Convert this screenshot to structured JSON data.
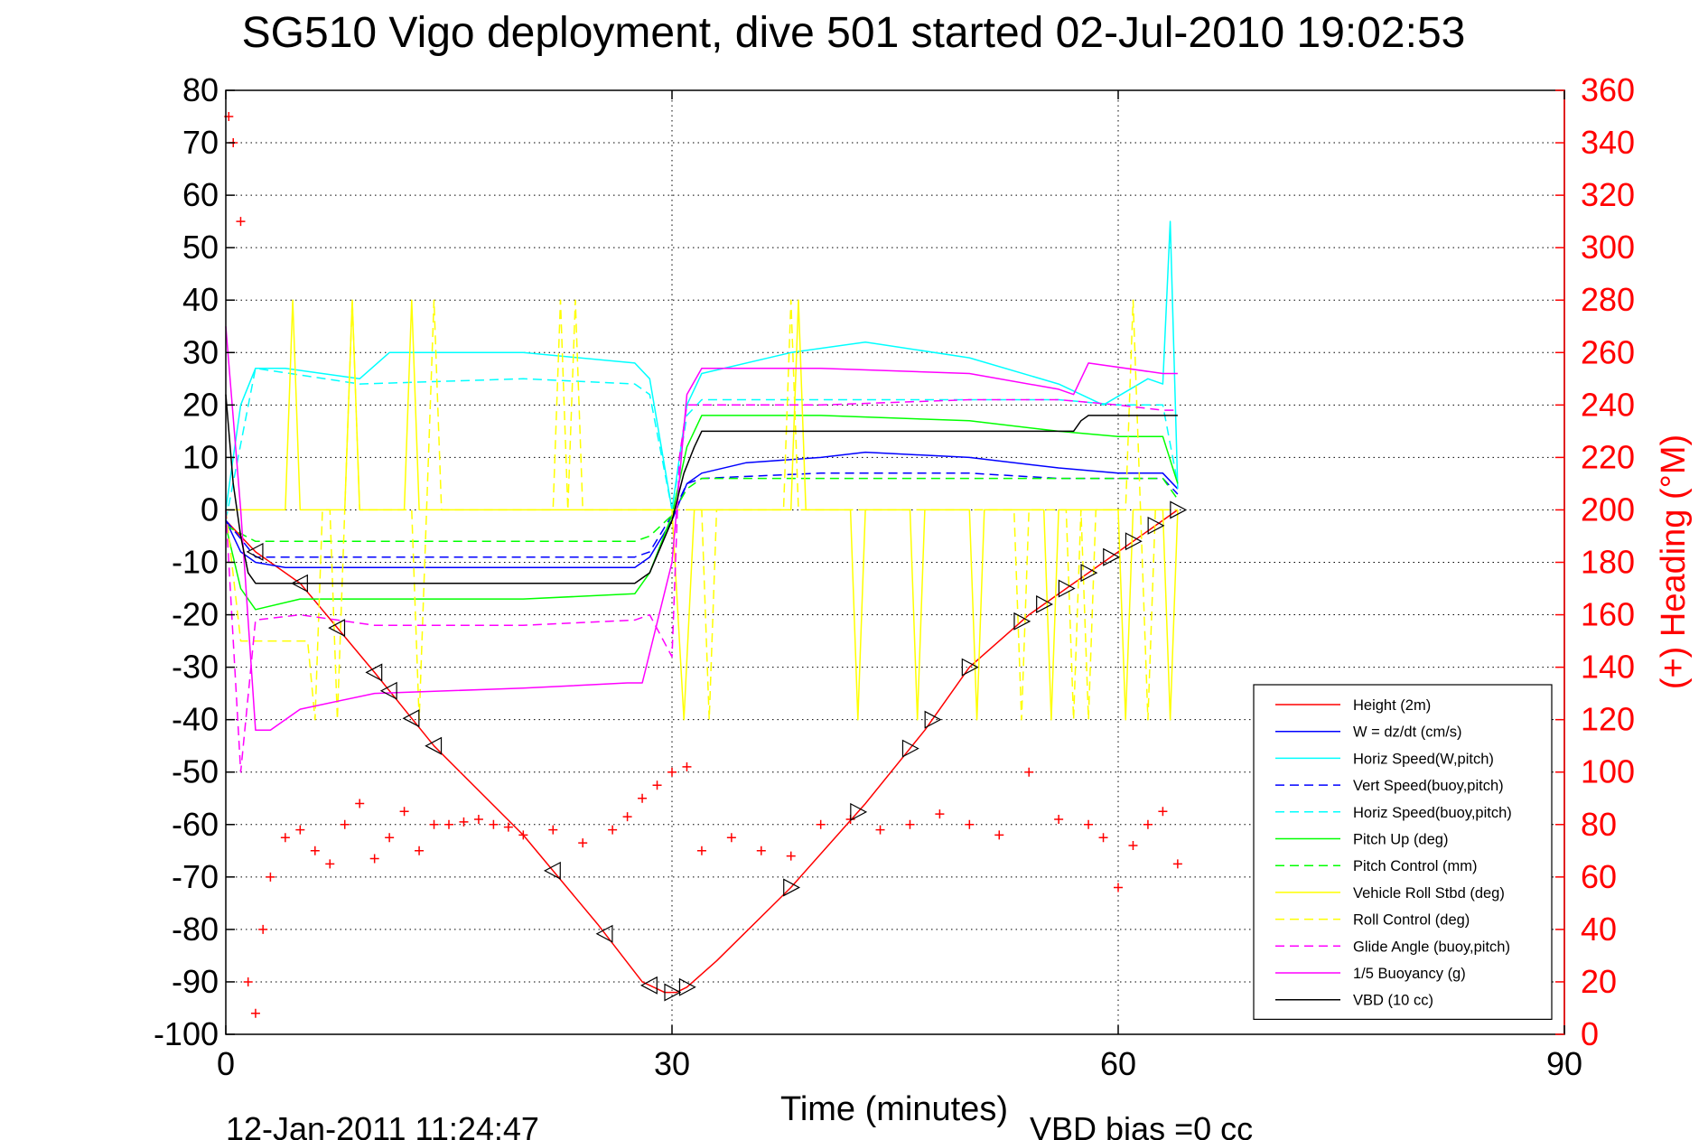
{
  "chart_data": {
    "type": "line",
    "title": "SG510 Vigo deployment, dive 501 started 02-Jul-2010 19:02:53",
    "xlabel": "Time (minutes)",
    "ylabel_right": "(+) Heading (°M)",
    "xlim": [
      0,
      90
    ],
    "ylim": [
      -100,
      80
    ],
    "ylim_right": [
      0,
      360
    ],
    "xticks": [
      "0",
      "30",
      "60",
      "90"
    ],
    "yticks": [
      "80",
      "70",
      "60",
      "50",
      "40",
      "30",
      "20",
      "10",
      "0",
      "-10",
      "-20",
      "-30",
      "-40",
      "-50",
      "-60",
      "-70",
      "-80",
      "-90",
      "-100"
    ],
    "yticks_right": [
      "360",
      "340",
      "320",
      "300",
      "280",
      "260",
      "240",
      "220",
      "200",
      "180",
      "160",
      "140",
      "120",
      "100",
      "80",
      "60",
      "40",
      "20",
      "0"
    ],
    "grid": true,
    "legend_position": "lower-right",
    "footer_left": "12-Jan-2011 11:24:47",
    "footer_right": "VBD bias =0 cc",
    "colors": {
      "red": "#ff0000",
      "blue": "#0000ff",
      "cyan": "#00ffff",
      "green": "#00ff00",
      "yellow": "#ffff00",
      "magenta": "#ff00ff",
      "black": "#000000"
    },
    "series": [
      {
        "name": "Height (2m)",
        "color": "#ff0000",
        "dash": "solid",
        "x": [
          0,
          2,
          5,
          10,
          14,
          20,
          25,
          28,
          29.5,
          30.3,
          31,
          33,
          38,
          43,
          47,
          50,
          54,
          58,
          62,
          64
        ],
        "y": [
          -2,
          -8,
          -14,
          -31,
          -45,
          -62,
          -79,
          -90,
          -92,
          -92,
          -91,
          -86,
          -72,
          -56,
          -42,
          -30,
          -20,
          -12,
          -4,
          0
        ]
      },
      {
        "name": "W = dz/dt (cm/s)",
        "color": "#0000ff",
        "dash": "solid",
        "x": [
          0,
          1,
          2,
          4,
          10,
          20,
          27.5,
          28.5,
          30,
          31,
          32,
          35,
          40,
          43,
          50,
          56,
          60,
          63,
          64
        ],
        "y": [
          -2,
          -8,
          -10,
          -11,
          -11,
          -11,
          -11,
          -9,
          -2,
          5,
          7,
          9,
          10,
          11,
          10,
          8,
          7,
          7,
          4
        ]
      },
      {
        "name": "Horiz Speed(W,pitch)",
        "color": "#00ffff",
        "dash": "solid",
        "x": [
          0,
          1,
          2,
          4,
          9,
          11,
          20,
          27.5,
          28.5,
          30,
          31,
          32,
          38,
          43,
          50,
          56,
          59,
          62,
          63,
          63.5,
          64
        ],
        "y": [
          0,
          20,
          27,
          27,
          25,
          30,
          30,
          28,
          25,
          0,
          20,
          26,
          30,
          32,
          29,
          24,
          20,
          25,
          24,
          55,
          4
        ]
      },
      {
        "name": "Vert Speed(buoy,pitch)",
        "color": "#0000ff",
        "dash": "dashed",
        "x": [
          0,
          2,
          10,
          27.5,
          28.5,
          30,
          31,
          32,
          40,
          50,
          56,
          60,
          63,
          64
        ],
        "y": [
          -2,
          -9,
          -9,
          -9,
          -8,
          -1,
          5,
          6,
          7,
          7,
          6,
          6,
          6,
          3
        ]
      },
      {
        "name": "Horiz Speed(buoy,pitch)",
        "color": "#00ffff",
        "dash": "dashed",
        "x": [
          0,
          2,
          9,
          20,
          27.5,
          28.5,
          30,
          31,
          32,
          40,
          50,
          56,
          60,
          63,
          64
        ],
        "y": [
          -2,
          27,
          24,
          25,
          24,
          22,
          0,
          18,
          21,
          21,
          21,
          21,
          20,
          20,
          5
        ]
      },
      {
        "name": "Pitch Up (deg)",
        "color": "#00ff00",
        "dash": "solid",
        "x": [
          0,
          1,
          2,
          5,
          20,
          27.5,
          28.5,
          30,
          31,
          32,
          40,
          50,
          56,
          60,
          63,
          64
        ],
        "y": [
          -3,
          -15,
          -19,
          -17,
          -17,
          -16,
          -12,
          -1,
          12,
          18,
          18,
          17,
          15,
          14,
          14,
          5
        ]
      },
      {
        "name": "Pitch Control (mm)",
        "color": "#00ff00",
        "dash": "dashed",
        "x": [
          0,
          2,
          20,
          27.5,
          28.5,
          30,
          31,
          32,
          40,
          50,
          56,
          60,
          63,
          64
        ],
        "y": [
          -3,
          -6,
          -6,
          -6,
          -5,
          -1,
          4,
          6,
          6,
          6,
          6,
          6,
          6,
          2
        ]
      },
      {
        "name": "Vehicle Roll Stbd (deg)",
        "color": "#ffff00",
        "dash": "solid",
        "x": [
          0,
          1,
          4,
          4.5,
          5,
          5.5,
          6,
          8,
          8.5,
          9,
          9.5,
          10,
          12,
          12.5,
          13,
          13.5,
          14,
          20,
          27,
          28.5,
          30,
          30.8,
          31.5,
          32.3,
          33,
          38,
          38.5,
          39,
          39.5,
          40,
          42,
          42.5,
          43,
          43.5,
          44,
          46,
          46.5,
          47,
          47.5,
          48,
          50,
          50.5,
          51,
          51.5,
          52,
          55,
          55.5,
          56,
          56.5,
          57,
          60,
          60.5,
          61,
          61.5,
          62,
          63,
          63.5,
          64
        ],
        "y": [
          0,
          0,
          0,
          40,
          0,
          0,
          0,
          0,
          40,
          0,
          0,
          0,
          0,
          40,
          0,
          0,
          0,
          0,
          0,
          0,
          0,
          -40,
          0,
          0,
          0,
          0,
          40,
          0,
          0,
          0,
          0,
          -40,
          0,
          0,
          0,
          0,
          -40,
          0,
          0,
          0,
          0,
          -40,
          0,
          0,
          0,
          0,
          -40,
          0,
          0,
          0,
          0,
          -40,
          0,
          0,
          0,
          0,
          -40,
          0
        ]
      },
      {
        "name": "Roll Control (deg)",
        "color": "#ffff00",
        "dash": "dashed",
        "x": [
          0,
          1,
          5.5,
          6,
          6.5,
          7,
          7.5,
          8,
          8.5,
          9,
          9.5,
          10,
          12.5,
          13,
          13.5,
          14,
          14.5,
          15,
          22,
          22.5,
          23,
          23.5,
          24,
          28.5,
          30,
          32,
          32.5,
          33,
          33.5,
          34,
          37.5,
          38,
          38.5,
          39,
          39.5,
          53,
          53.5,
          54,
          54.5,
          55,
          56.5,
          57,
          57.5,
          58,
          58.5,
          60.5,
          61,
          61.5,
          62,
          62.5,
          64
        ],
        "y": [
          0,
          -25,
          -25,
          -40,
          0,
          0,
          -40,
          0,
          40,
          0,
          0,
          0,
          0,
          -40,
          0,
          40,
          0,
          0,
          0,
          40,
          0,
          40,
          0,
          0,
          0,
          0,
          -40,
          0,
          0,
          0,
          0,
          40,
          0,
          0,
          0,
          0,
          -40,
          0,
          0,
          0,
          0,
          -40,
          0,
          -40,
          0,
          0,
          40,
          0,
          -40,
          0,
          0
        ]
      },
      {
        "name": "Glide Angle (buoy,pitch)",
        "color": "#ff00ff",
        "dash": "dashed",
        "x": [
          0,
          1,
          2,
          5,
          10,
          20,
          27.5,
          28.5,
          30,
          30.5,
          31,
          32,
          40,
          50,
          56,
          60,
          63,
          64
        ],
        "y": [
          0,
          -50,
          -21,
          -20,
          -22,
          -22,
          -21,
          -20,
          -28,
          10,
          20,
          20,
          20,
          21,
          21,
          20,
          19,
          19
        ]
      },
      {
        "name": "1/5 Buoyancy (g)",
        "color": "#ff00ff",
        "dash": "solid",
        "x": [
          0,
          1,
          2,
          3,
          5,
          10,
          20,
          27,
          28,
          30,
          31,
          32,
          40,
          50,
          56,
          57,
          58,
          63,
          64
        ],
        "y": [
          35,
          0,
          -42,
          -42,
          -38,
          -35,
          -34,
          -33,
          -33,
          -10,
          22,
          27,
          27,
          26,
          23,
          22,
          28,
          26,
          26
        ]
      },
      {
        "name": "VBD (10 cc)",
        "color": "#000000",
        "dash": "solid",
        "x": [
          0,
          0.5,
          1,
          1.5,
          2,
          5,
          20,
          27.5,
          28.5,
          30,
          30.8,
          31.5,
          32,
          40,
          57,
          57.5,
          58,
          60,
          63,
          64
        ],
        "y": [
          22,
          5,
          -5,
          -12,
          -14,
          -14,
          -14,
          -14,
          -12,
          -2,
          7,
          12,
          15,
          15,
          15,
          17,
          18,
          18,
          18,
          18
        ]
      },
      {
        "name": "Heading",
        "color": "#ff0000",
        "dash": "none",
        "marker": "+",
        "axis": "right",
        "x": [
          0.2,
          0.5,
          1,
          1.5,
          2,
          2.5,
          3,
          4,
          5,
          6,
          7,
          8,
          9,
          10,
          11,
          12,
          13,
          14,
          15,
          16,
          17,
          18,
          19,
          20,
          22,
          24,
          26,
          27,
          28,
          29,
          30,
          31,
          32,
          34,
          36,
          38,
          40,
          42,
          44,
          46,
          48,
          50,
          52,
          54,
          56,
          58,
          59,
          60,
          61,
          62,
          63,
          64
        ],
        "y": [
          350,
          340,
          310,
          20,
          8,
          40,
          60,
          75,
          78,
          70,
          65,
          80,
          88,
          67,
          75,
          85,
          70,
          80,
          80,
          81,
          82,
          80,
          79,
          76,
          78,
          73,
          78,
          83,
          90,
          95,
          100,
          102,
          70,
          75,
          70,
          68,
          80,
          82,
          78,
          80,
          84,
          80,
          76,
          100,
          82,
          80,
          75,
          56,
          72,
          80,
          85,
          65
        ]
      }
    ]
  }
}
